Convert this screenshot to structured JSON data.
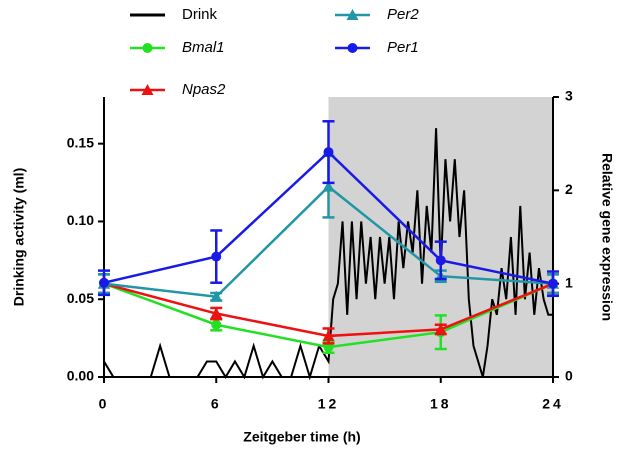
{
  "chart_data": {
    "type": "line",
    "xlabel": "Zeitgeber time (h)",
    "ylabel": "Drinking activity (ml)",
    "y2label": "Relative gene expression",
    "xlim": [
      0,
      24
    ],
    "xticks": [
      0,
      6,
      12,
      18,
      24
    ],
    "ylim": [
      0,
      0.18
    ],
    "yticks": [
      {
        "value": 0,
        "label": "0.00"
      },
      {
        "value": 0.05,
        "label": "0.05"
      },
      {
        "value": 0.1,
        "label": "0.10"
      },
      {
        "value": 0.15,
        "label": "0.15"
      }
    ],
    "y2lim": [
      0,
      3
    ],
    "y2ticks": [
      0,
      1,
      2,
      3
    ],
    "shaded_x": [
      12,
      24
    ],
    "shade_color": "#d3d3d3",
    "x": [
      0,
      6,
      12,
      18,
      24
    ],
    "series": [
      {
        "name": "Drink",
        "color": "#000000",
        "marker": "none",
        "x": [
          0,
          0.5,
          1,
          1.5,
          2,
          2.5,
          3,
          3.5,
          4,
          4.5,
          5,
          5.5,
          6,
          6.5,
          7,
          7.5,
          8,
          8.5,
          9,
          9.5,
          10,
          10.5,
          11,
          11.5,
          12,
          12.25,
          12.5,
          12.75,
          13,
          13.25,
          13.5,
          13.75,
          14,
          14.25,
          14.5,
          14.75,
          15,
          15.25,
          15.5,
          15.75,
          16,
          16.25,
          16.5,
          16.75,
          17,
          17.25,
          17.5,
          17.75,
          18,
          18.25,
          18.5,
          18.75,
          19,
          19.25,
          19.5,
          19.75,
          20,
          20.25,
          20.5,
          20.75,
          21,
          21.25,
          21.5,
          21.75,
          22,
          22.25,
          22.5,
          22.75,
          23,
          23.25,
          23.5,
          23.75,
          24
        ],
        "values": [
          0.01,
          0,
          0,
          0,
          0,
          0,
          0.02,
          0,
          0,
          0,
          0,
          0.01,
          0.01,
          0,
          0.01,
          0,
          0.02,
          0,
          0.01,
          0,
          0,
          0.02,
          0,
          0.02,
          0.01,
          0.05,
          0.06,
          0.1,
          0.04,
          0.1,
          0.05,
          0.1,
          0.06,
          0.09,
          0.05,
          0.09,
          0.06,
          0.09,
          0.05,
          0.1,
          0.07,
          0.1,
          0.08,
          0.12,
          0.06,
          0.11,
          0.08,
          0.16,
          0.07,
          0.14,
          0.1,
          0.14,
          0.09,
          0.12,
          0.05,
          0.02,
          0.01,
          0,
          0.02,
          0.05,
          0.04,
          0.07,
          0.05,
          0.09,
          0.04,
          0.11,
          0.05,
          0.08,
          0.04,
          0.07,
          0.05,
          0.04,
          0.04
        ]
      },
      {
        "name": "Bmal1",
        "color": "#22e022",
        "marker": "circle",
        "axis": "y2",
        "values": [
          1.0,
          0.56,
          0.32,
          0.48,
          1.0
        ],
        "errors": [
          0.1,
          0.06,
          0.06,
          0.18,
          0.1
        ]
      },
      {
        "name": "Npas2",
        "color": "#ee1111",
        "marker": "triangle",
        "axis": "y2",
        "values": [
          1.0,
          0.68,
          0.44,
          0.51,
          1.0
        ],
        "errors": [
          0.1,
          0.06,
          0.08,
          0.05,
          0.1
        ]
      },
      {
        "name": "Per2",
        "color": "#2196a6",
        "marker": "triangle",
        "axis": "y2",
        "values": [
          1.0,
          0.86,
          2.04,
          1.08,
          1.0
        ],
        "errors": [
          0.1,
          0.04,
          0.33,
          0.06,
          0.1
        ]
      },
      {
        "name": "Per1",
        "color": "#1a1ae6",
        "marker": "circle",
        "axis": "y2",
        "values": [
          1.01,
          1.29,
          2.41,
          1.25,
          1.0
        ],
        "errors": [
          0.13,
          0.28,
          0.33,
          0.2,
          0.13
        ]
      }
    ]
  }
}
